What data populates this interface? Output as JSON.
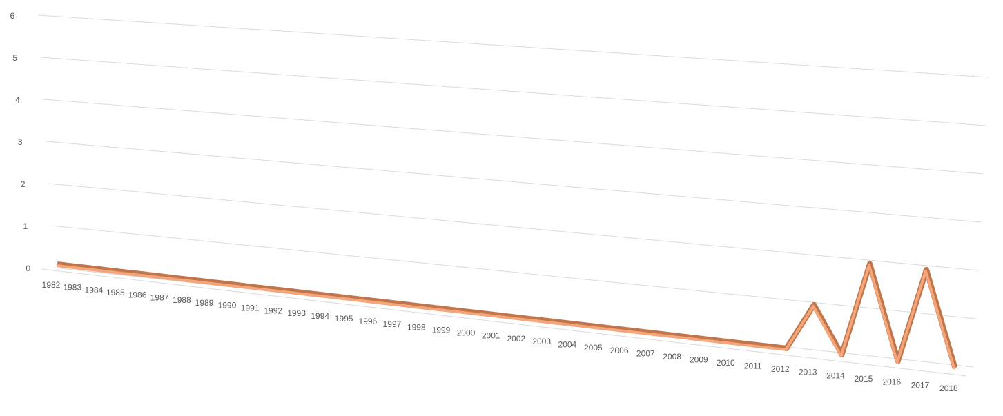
{
  "chart_data": {
    "type": "line",
    "categories": [
      "1982",
      "1983",
      "1984",
      "1985",
      "1986",
      "1987",
      "1988",
      "1989",
      "1990",
      "1991",
      "1992",
      "1993",
      "1994",
      "1995",
      "1996",
      "1997",
      "1998",
      "1999",
      "2000",
      "2001",
      "2002",
      "2003",
      "2004",
      "2005",
      "2006",
      "2007",
      "2008",
      "2009",
      "2010",
      "2011",
      "2012",
      "2013",
      "2014",
      "2015",
      "2016",
      "2017",
      "2018"
    ],
    "values": [
      0,
      0,
      0,
      0,
      0,
      0,
      0,
      0,
      0,
      0,
      0,
      0,
      0,
      0,
      0,
      0,
      0,
      0,
      0,
      0,
      0,
      0,
      0,
      0,
      0,
      0,
      0,
      0,
      0,
      0,
      0,
      1,
      0,
      2,
      0,
      2,
      0
    ],
    "color": "#f4a57a",
    "ylim": [
      0,
      6
    ],
    "yticks": [
      0,
      1,
      2,
      3,
      4,
      5,
      6
    ],
    "grid": true
  }
}
